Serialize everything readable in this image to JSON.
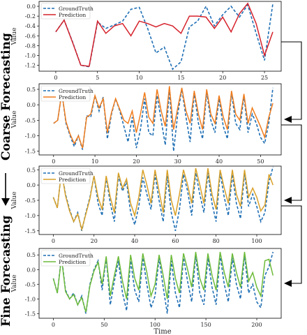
{
  "figure": {
    "side_label_coarse": "Coarse Forecasting",
    "side_label_fine": "Fine Forecasting",
    "xlabel": "Time"
  },
  "chart_data": [
    {
      "type": "line",
      "ylabel": "Value",
      "xlim": [
        -2,
        27
      ],
      "ylim": [
        -1.32,
        0.1
      ],
      "xticks": [
        0,
        5,
        10,
        15,
        20,
        25
      ],
      "yticks": [
        0.0,
        -0.2,
        -0.4,
        -0.6,
        -0.8,
        -1.0,
        -1.2
      ],
      "ytick_labels": [
        "0.0",
        "-0.2",
        "-0.4",
        "-0.6",
        "-0.8",
        "-1.0",
        "-1.2"
      ],
      "legend": "top-left",
      "series": [
        {
          "name": "GroundTruth",
          "color": "#1f6fb4",
          "style": "dashed",
          "x": [
            0,
            1,
            2,
            3,
            4,
            5,
            6,
            7,
            8,
            9,
            10,
            11,
            12,
            13,
            14,
            15,
            16,
            17,
            18,
            19,
            20,
            21,
            22,
            23,
            24,
            25,
            26
          ],
          "y": [
            -0.52,
            -0.28,
            -0.72,
            -1.2,
            -1.23,
            -0.32,
            -0.45,
            -0.38,
            -0.3,
            -0.06,
            -0.02,
            -0.45,
            -0.95,
            -0.83,
            -1.28,
            -1.13,
            -0.42,
            -0.3,
            0.0,
            -0.4,
            -0.17,
            0.0,
            -0.22,
            0.03,
            -0.55,
            -1.1,
            0.05
          ]
        },
        {
          "name": "Prediction",
          "color": "#d6212b",
          "style": "solid",
          "x": [
            0,
            1,
            2,
            3,
            4,
            5,
            6,
            7,
            8,
            9,
            10,
            11,
            12,
            13,
            14,
            15,
            16,
            17,
            18,
            19,
            20,
            21,
            22,
            23,
            24,
            25,
            26
          ],
          "y": [
            -0.52,
            -0.28,
            -0.73,
            -1.2,
            -1.22,
            -0.3,
            -0.55,
            -0.4,
            -0.35,
            -0.6,
            -0.3,
            -0.35,
            -0.42,
            -0.35,
            -0.4,
            -0.55,
            -0.2,
            -0.2,
            -0.22,
            -0.45,
            -0.22,
            -0.52,
            -0.15,
            0.06,
            -0.35,
            -1.0,
            -0.52
          ]
        }
      ]
    },
    {
      "type": "line",
      "ylabel": "Value",
      "xlim": [
        -3.5,
        55
      ],
      "ylim": [
        -1.62,
        0.68
      ],
      "xticks": [
        0,
        10,
        20,
        30,
        40,
        50
      ],
      "yticks": [
        0.5,
        0.0,
        -0.5,
        -1.0,
        -1.5
      ],
      "ytick_labels": [
        "0.5",
        "0.0",
        "-0.5",
        "-1.0",
        "-1.5"
      ],
      "legend": "top-left",
      "series": [
        {
          "name": "GroundTruth",
          "color": "#1f6fb4",
          "style": "dashed",
          "x": [
            0,
            1,
            2,
            3,
            4,
            5,
            6,
            7,
            8,
            9,
            10,
            11,
            12,
            13,
            14,
            15,
            16,
            17,
            18,
            19,
            20,
            21,
            22,
            23,
            24,
            25,
            26,
            27,
            28,
            29,
            30,
            31,
            32,
            33,
            34,
            35,
            36,
            37,
            38,
            39,
            40,
            41,
            42,
            43,
            44,
            45,
            46,
            47,
            48,
            49,
            50,
            51,
            52,
            53
          ],
          "y": [
            -0.6,
            -0.5,
            0.4,
            -0.6,
            -1.0,
            -1.35,
            -1.0,
            -1.45,
            -0.35,
            -0.4,
            0.3,
            -0.2,
            0.25,
            -1.1,
            -0.3,
            0.2,
            -0.2,
            -0.7,
            -1.2,
            -0.4,
            -1.4,
            -0.8,
            0.2,
            -0.9,
            -1.0,
            0.3,
            -0.5,
            -1.3,
            0.5,
            -1.5,
            -0.3,
            0.5,
            -0.4,
            -1.2,
            0.4,
            -0.6,
            -1.1,
            0.4,
            -0.5,
            -0.9,
            0.2,
            -0.7,
            -1.1,
            0.4,
            -0.6,
            -0.8,
            0.3,
            -0.9,
            -0.3,
            -0.6,
            -1.05,
            -1.25,
            -0.6,
            0.55
          ]
        },
        {
          "name": "Prediction",
          "color": "#f07d1e",
          "style": "solid",
          "x": [
            0,
            1,
            2,
            3,
            4,
            5,
            6,
            7,
            8,
            9,
            10,
            11,
            12,
            13,
            14,
            15,
            16,
            17,
            18,
            19,
            20,
            21,
            22,
            23,
            24,
            25,
            26,
            27,
            28,
            29,
            30,
            31,
            32,
            33,
            34,
            35,
            36,
            37,
            38,
            39,
            40,
            41,
            42,
            43,
            44,
            45,
            46,
            47,
            48,
            49,
            50,
            51,
            52,
            53
          ],
          "y": [
            -0.6,
            -0.5,
            0.4,
            -0.55,
            -0.95,
            -1.25,
            -1.0,
            -1.4,
            -0.4,
            -0.3,
            0.3,
            -0.1,
            0.2,
            -0.9,
            -0.25,
            0.2,
            -0.15,
            -0.5,
            -0.6,
            -0.2,
            -0.9,
            -0.3,
            0.4,
            -0.4,
            -0.6,
            0.5,
            -0.2,
            -0.7,
            0.6,
            -0.8,
            -0.1,
            0.55,
            -0.2,
            -0.6,
            0.45,
            -0.3,
            -0.8,
            0.5,
            -0.3,
            -0.6,
            0.3,
            -0.4,
            -0.8,
            0.45,
            -0.3,
            -0.5,
            0.35,
            -0.6,
            -0.1,
            -0.4,
            -0.7,
            -1.05,
            -0.4,
            0.05
          ]
        }
      ]
    },
    {
      "type": "line",
      "ylabel": "Value",
      "xlim": [
        -7,
        112
      ],
      "ylim": [
        -1.62,
        0.62
      ],
      "xticks": [
        0,
        20,
        40,
        60,
        80,
        100
      ],
      "yticks": [
        0.5,
        0.0,
        -0.5,
        -1.0,
        -1.5
      ],
      "ytick_labels": [
        "0.5",
        "0.0",
        "-0.5",
        "-1.0",
        "-1.5"
      ],
      "legend": "top-left",
      "series": [
        {
          "name": "GroundTruth",
          "color": "#1f6fb4",
          "style": "dashed",
          "x": [
            0,
            2,
            4,
            6,
            8,
            10,
            12,
            14,
            16,
            18,
            20,
            22,
            24,
            26,
            28,
            30,
            32,
            34,
            36,
            38,
            40,
            42,
            44,
            46,
            48,
            50,
            52,
            54,
            56,
            58,
            60,
            62,
            64,
            66,
            68,
            70,
            72,
            74,
            76,
            78,
            80,
            82,
            84,
            86,
            88,
            90,
            92,
            94,
            96,
            98,
            100,
            102,
            104,
            106,
            108
          ],
          "y": [
            -0.4,
            -0.75,
            0.45,
            -0.3,
            -0.8,
            -1.2,
            -0.9,
            -1.5,
            -0.9,
            -0.4,
            0.3,
            -0.6,
            -1.0,
            0.25,
            -0.6,
            -1.2,
            0.3,
            -0.2,
            0.1,
            -0.9,
            -1.3,
            -0.7,
            0.25,
            -0.3,
            -0.8,
            0.35,
            -0.5,
            -1.2,
            0.3,
            -0.9,
            -1.5,
            -0.8,
            0.35,
            -0.2,
            -1.0,
            0.4,
            -0.3,
            -0.9,
            0.4,
            -0.6,
            -1.2,
            0.4,
            -0.4,
            -1.0,
            0.35,
            -0.6,
            -1.1,
            0.4,
            -0.7,
            -0.3,
            -0.7,
            -1.2,
            -0.9,
            0.1,
            0.6
          ]
        },
        {
          "name": "Prediction",
          "color": "#d9a128",
          "style": "solid",
          "x": [
            0,
            2,
            4,
            6,
            8,
            10,
            12,
            14,
            16,
            18,
            20,
            22,
            24,
            26,
            28,
            30,
            32,
            34,
            36,
            38,
            40,
            42,
            44,
            46,
            48,
            50,
            52,
            54,
            56,
            58,
            60,
            62,
            64,
            66,
            68,
            70,
            72,
            74,
            76,
            78,
            80,
            82,
            84,
            86,
            88,
            90,
            92,
            94,
            96,
            98,
            100,
            102,
            104,
            106,
            108
          ],
          "y": [
            -0.4,
            -0.75,
            0.45,
            -0.35,
            -0.85,
            -1.2,
            -0.95,
            -1.45,
            -0.95,
            -0.45,
            0.3,
            -0.4,
            -0.8,
            0.3,
            -0.4,
            -0.9,
            0.4,
            -0.1,
            0.2,
            -0.6,
            -1.0,
            -0.4,
            0.5,
            0.0,
            -0.6,
            0.5,
            -0.2,
            -0.9,
            0.5,
            -0.5,
            -1.0,
            -0.3,
            0.5,
            0.0,
            -0.6,
            0.55,
            0.0,
            -0.6,
            0.55,
            -0.3,
            -0.8,
            0.5,
            -0.1,
            -0.6,
            0.5,
            -0.3,
            -0.7,
            0.5,
            -0.4,
            -0.1,
            -0.4,
            -0.85,
            -0.65,
            0.35,
            0.0
          ]
        }
      ]
    },
    {
      "type": "line",
      "ylabel": "Value",
      "xlim": [
        -14,
        224
      ],
      "ylim": [
        -1.66,
        0.72
      ],
      "xticks": [
        0,
        50,
        100,
        150,
        200
      ],
      "yticks": [
        0.5,
        0.0,
        -0.5,
        -1.0,
        -1.5
      ],
      "ytick_labels": [
        "0.5",
        "0.0",
        "-0.5",
        "-1.0",
        "-1.5"
      ],
      "legend": "top-left",
      "series": [
        {
          "name": "GroundTruth",
          "color": "#1f6fb4",
          "style": "dashed",
          "x": [
            0,
            4,
            8,
            12,
            16,
            20,
            24,
            28,
            32,
            36,
            40,
            44,
            48,
            52,
            56,
            60,
            64,
            68,
            72,
            76,
            80,
            84,
            88,
            92,
            96,
            100,
            104,
            108,
            112,
            116,
            120,
            124,
            128,
            132,
            136,
            140,
            144,
            148,
            152,
            156,
            160,
            164,
            168,
            172,
            176,
            180,
            184,
            188,
            192,
            196,
            200,
            204,
            208,
            212,
            216
          ],
          "y": [
            -0.3,
            -0.8,
            0.45,
            -0.7,
            -1.0,
            -0.8,
            -1.2,
            -0.9,
            -1.5,
            -0.5,
            0.0,
            0.3,
            -0.7,
            0.4,
            -1.2,
            -0.4,
            0.3,
            -0.8,
            -1.4,
            0.3,
            -0.7,
            -1.1,
            0.4,
            -0.5,
            -1.3,
            -0.9,
            0.4,
            -0.6,
            -1.5,
            0.3,
            -0.8,
            -1.3,
            0.4,
            -0.4,
            -1.1,
            0.5,
            -0.8,
            -1.2,
            0.4,
            -0.6,
            -1.2,
            0.5,
            -0.5,
            -1.1,
            0.4,
            -0.5,
            -1.0,
            0.5,
            -0.8,
            -0.5,
            -1.1,
            -1.3,
            -0.2,
            0.1,
            0.6
          ]
        },
        {
          "name": "Prediction",
          "color": "#6dbb3a",
          "style": "solid",
          "x": [
            0,
            4,
            8,
            12,
            16,
            20,
            24,
            28,
            32,
            36,
            40,
            44,
            48,
            52,
            56,
            60,
            64,
            68,
            72,
            76,
            80,
            84,
            88,
            92,
            96,
            100,
            104,
            108,
            112,
            116,
            120,
            124,
            128,
            132,
            136,
            140,
            144,
            148,
            152,
            156,
            160,
            164,
            168,
            172,
            176,
            180,
            184,
            188,
            192,
            196,
            200,
            204,
            208,
            212,
            216
          ],
          "y": [
            -0.3,
            -0.8,
            0.4,
            -0.75,
            -1.0,
            -0.85,
            -1.2,
            -0.95,
            -1.45,
            -0.55,
            -0.05,
            0.25,
            -0.5,
            0.45,
            -0.9,
            -0.2,
            0.45,
            -0.4,
            -1.0,
            0.5,
            -0.3,
            -0.7,
            0.55,
            -0.1,
            -0.9,
            -0.5,
            0.5,
            -0.2,
            -1.0,
            0.5,
            -0.3,
            -0.8,
            0.55,
            0.0,
            -0.6,
            0.6,
            -0.3,
            -0.7,
            0.55,
            -0.2,
            -0.7,
            0.6,
            -0.1,
            -0.6,
            0.55,
            -0.1,
            -0.6,
            0.6,
            -0.4,
            -0.1,
            -0.6,
            -0.9,
            0.3,
            0.35,
            -0.2
          ]
        }
      ]
    }
  ]
}
